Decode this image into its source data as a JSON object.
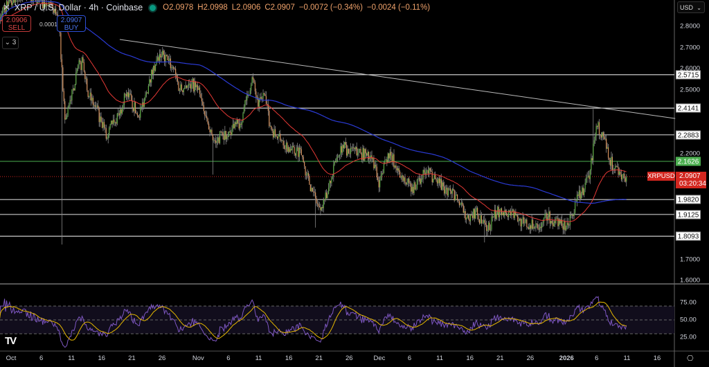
{
  "header": {
    "close_icon": "x-icon",
    "title": "XRP / U.S. Dollar · 4h · Coinbase",
    "status_color": "#089981",
    "ohlc": {
      "open": "O2.0978",
      "high": "H2.0998",
      "low": "L2.0906",
      "close": "C2.0907",
      "change": "−0.0072 (−0.34%)",
      "change2": "−0.0024 (−0.11%)"
    }
  },
  "trade": {
    "sell_price": "2.0906",
    "sell_label": "SELL",
    "spread": "0.0001",
    "buy_price": "2.0907",
    "buy_label": "BUY",
    "indicators_toggle": "3"
  },
  "currency_select": "USD",
  "current": {
    "symbol": "XRPUSD",
    "price": "2.0907",
    "countdown": "03:20:34"
  },
  "chart_data": {
    "type": "candlestick",
    "interval": "4h",
    "price_axis": {
      "ticks": [
        "2.8000",
        "2.7000",
        "2.6000",
        "2.5000",
        "2.2000",
        "1.7000",
        "1.6000"
      ],
      "range": [
        1.55,
        2.92
      ]
    },
    "levels": [
      {
        "value": "2.5715",
        "color": "#ffffff"
      },
      {
        "value": "2.4141",
        "color": "#ffffff"
      },
      {
        "value": "2.2883",
        "color": "#9a9a9a"
      },
      {
        "value": "2.1626",
        "color": "#4caf50"
      },
      {
        "value": "1.9820",
        "color": "#9a9a9a"
      },
      {
        "value": "1.9125",
        "color": "#9a9a9a"
      },
      {
        "value": "1.8093",
        "color": "#ffffff"
      }
    ],
    "trendline": {
      "from": [
        "2025-10-19",
        2.738
      ],
      "to": [
        "2026-01-19",
        2.365
      ],
      "color": "#bbbbbb"
    },
    "daily_closes": [
      [
        "2025-09-29",
        2.85
      ],
      [
        "2025-09-30",
        2.88
      ],
      [
        "2025-10-01",
        2.92
      ],
      [
        "2025-10-02",
        2.93
      ],
      [
        "2025-10-03",
        2.95
      ],
      [
        "2025-10-04",
        2.93
      ],
      [
        "2025-10-05",
        2.95
      ],
      [
        "2025-10-06",
        2.92
      ],
      [
        "2025-10-07",
        2.9
      ],
      [
        "2025-10-08",
        2.88
      ],
      [
        "2025-10-09",
        2.82
      ],
      [
        "2025-10-10",
        2.36
      ],
      [
        "2025-10-11",
        2.45
      ],
      [
        "2025-10-12",
        2.6
      ],
      [
        "2025-10-13",
        2.63
      ],
      [
        "2025-10-14",
        2.47
      ],
      [
        "2025-10-15",
        2.42
      ],
      [
        "2025-10-16",
        2.35
      ],
      [
        "2025-10-17",
        2.27
      ],
      [
        "2025-10-18",
        2.36
      ],
      [
        "2025-10-19",
        2.38
      ],
      [
        "2025-10-20",
        2.48
      ],
      [
        "2025-10-21",
        2.45
      ],
      [
        "2025-10-22",
        2.38
      ],
      [
        "2025-10-23",
        2.42
      ],
      [
        "2025-10-24",
        2.55
      ],
      [
        "2025-10-25",
        2.62
      ],
      [
        "2025-10-26",
        2.66
      ],
      [
        "2025-10-27",
        2.64
      ],
      [
        "2025-10-28",
        2.6
      ],
      [
        "2025-10-29",
        2.5
      ],
      [
        "2025-10-30",
        2.52
      ],
      [
        "2025-10-31",
        2.53
      ],
      [
        "2025-11-01",
        2.5
      ],
      [
        "2025-11-02",
        2.4
      ],
      [
        "2025-11-03",
        2.3
      ],
      [
        "2025-11-04",
        2.25
      ],
      [
        "2025-11-05",
        2.3
      ],
      [
        "2025-11-06",
        2.28
      ],
      [
        "2025-11-07",
        2.32
      ],
      [
        "2025-11-08",
        2.34
      ],
      [
        "2025-11-09",
        2.45
      ],
      [
        "2025-11-10",
        2.56
      ],
      [
        "2025-11-11",
        2.42
      ],
      [
        "2025-11-12",
        2.48
      ],
      [
        "2025-11-13",
        2.33
      ],
      [
        "2025-11-14",
        2.28
      ],
      [
        "2025-11-15",
        2.26
      ],
      [
        "2025-11-16",
        2.23
      ],
      [
        "2025-11-17",
        2.2
      ],
      [
        "2025-11-18",
        2.22
      ],
      [
        "2025-11-19",
        2.1
      ],
      [
        "2025-11-20",
        2.02
      ],
      [
        "2025-11-21",
        1.95
      ],
      [
        "2025-11-22",
        1.98
      ],
      [
        "2025-11-23",
        2.06
      ],
      [
        "2025-11-24",
        2.18
      ],
      [
        "2025-11-25",
        2.24
      ],
      [
        "2025-11-26",
        2.2
      ],
      [
        "2025-11-27",
        2.22
      ],
      [
        "2025-11-28",
        2.2
      ],
      [
        "2025-11-29",
        2.19
      ],
      [
        "2025-11-30",
        2.18
      ],
      [
        "2025-12-01",
        2.04
      ],
      [
        "2025-12-02",
        2.17
      ],
      [
        "2025-12-03",
        2.19
      ],
      [
        "2025-12-04",
        2.12
      ],
      [
        "2025-12-05",
        2.07
      ],
      [
        "2025-12-06",
        2.06
      ],
      [
        "2025-12-07",
        2.03
      ],
      [
        "2025-12-08",
        2.08
      ],
      [
        "2025-12-09",
        2.12
      ],
      [
        "2025-12-10",
        2.08
      ],
      [
        "2025-12-11",
        2.06
      ],
      [
        "2025-12-12",
        2.03
      ],
      [
        "2025-12-13",
        2.01
      ],
      [
        "2025-12-14",
        1.98
      ],
      [
        "2025-12-15",
        1.92
      ],
      [
        "2025-12-16",
        1.88
      ],
      [
        "2025-12-17",
        1.93
      ],
      [
        "2025-12-18",
        1.87
      ],
      [
        "2025-12-19",
        1.84
      ],
      [
        "2025-12-20",
        1.9
      ],
      [
        "2025-12-21",
        1.93
      ],
      [
        "2025-12-22",
        1.92
      ],
      [
        "2025-12-23",
        1.93
      ],
      [
        "2025-12-24",
        1.88
      ],
      [
        "2025-12-25",
        1.87
      ],
      [
        "2025-12-26",
        1.86
      ],
      [
        "2025-12-27",
        1.87
      ],
      [
        "2025-12-28",
        1.87
      ],
      [
        "2025-12-29",
        1.9
      ],
      [
        "2025-12-30",
        1.88
      ],
      [
        "2025-12-31",
        1.87
      ],
      [
        "2026-01-01",
        1.85
      ],
      [
        "2026-01-02",
        1.91
      ],
      [
        "2026-01-03",
        2.0
      ],
      [
        "2026-01-04",
        2.03
      ],
      [
        "2026-01-05",
        2.12
      ],
      [
        "2026-01-06",
        2.33
      ],
      [
        "2026-01-07",
        2.3
      ],
      [
        "2026-01-08",
        2.18
      ],
      [
        "2026-01-09",
        2.13
      ],
      [
        "2026-01-10",
        2.1
      ],
      [
        "2026-01-11",
        2.0907
      ]
    ],
    "extremes": [
      [
        "2025-10-10",
        1.77
      ],
      [
        "2025-11-04",
        2.1
      ],
      [
        "2025-11-21",
        1.85
      ],
      [
        "2025-12-19",
        1.78
      ],
      [
        "2026-01-06",
        2.41
      ]
    ],
    "moving_averages": [
      {
        "color": "#e53935"
      },
      {
        "color": "#2b3bd6"
      }
    ],
    "rsi": {
      "ticks": [
        "75.00",
        "50.00",
        "25.00"
      ],
      "bands": [
        70,
        50,
        30
      ],
      "line_color": "#7e57c2",
      "ma_color": "#e6b800"
    },
    "x_ticks": [
      {
        "label": "Oct",
        "date": "2025-10-01"
      },
      {
        "label": "6",
        "date": "2025-10-06"
      },
      {
        "label": "11",
        "date": "2025-10-11"
      },
      {
        "label": "16",
        "date": "2025-10-16"
      },
      {
        "label": "21",
        "date": "2025-10-21"
      },
      {
        "label": "26",
        "date": "2025-10-26"
      },
      {
        "label": "Nov",
        "date": "2025-11-01"
      },
      {
        "label": "6",
        "date": "2025-11-06"
      },
      {
        "label": "11",
        "date": "2025-11-11"
      },
      {
        "label": "16",
        "date": "2025-11-16"
      },
      {
        "label": "21",
        "date": "2025-11-21"
      },
      {
        "label": "26",
        "date": "2025-11-26"
      },
      {
        "label": "Dec",
        "date": "2025-12-01"
      },
      {
        "label": "6",
        "date": "2025-12-06"
      },
      {
        "label": "11",
        "date": "2025-12-11"
      },
      {
        "label": "16",
        "date": "2025-12-16"
      },
      {
        "label": "21",
        "date": "2025-12-21"
      },
      {
        "label": "26",
        "date": "2025-12-26"
      },
      {
        "label": "2026",
        "date": "2026-01-01"
      },
      {
        "label": "6",
        "date": "2026-01-06"
      },
      {
        "label": "11",
        "date": "2026-01-11"
      },
      {
        "label": "16",
        "date": "2026-01-16"
      }
    ]
  },
  "settings_icon": "gear-icon",
  "logo": "TV"
}
